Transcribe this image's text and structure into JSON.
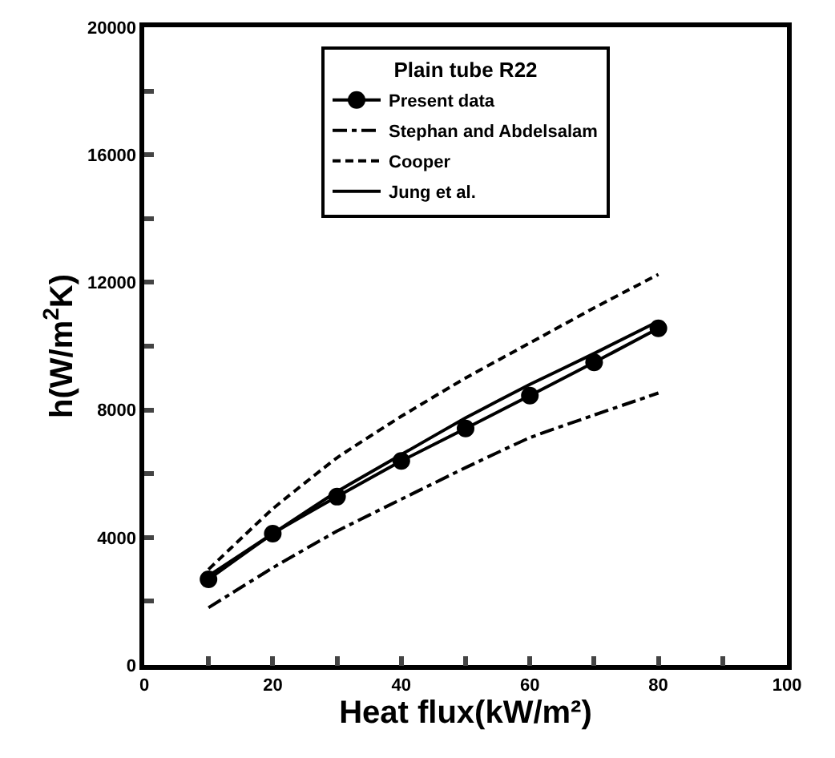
{
  "chart_data": {
    "type": "line",
    "xlabel": "Heat flux(kW/m²)",
    "ylabel": "h(W/m$^{2}$K)",
    "legend_title": "Plain tube R22",
    "x": [
      10,
      20,
      30,
      40,
      50,
      60,
      70,
      80
    ],
    "series": [
      {
        "name": "Present data",
        "color": "#000000",
        "marker": "circle",
        "line_style": "solid",
        "values": [
          2690,
          4120,
          5280,
          6400,
          7420,
          8450,
          9490,
          10560
        ]
      },
      {
        "name": "Stephan and Abdelsalam",
        "color": "#000000",
        "marker": "none",
        "line_style": "dashdot",
        "values": [
          1800,
          3050,
          4200,
          5200,
          6190,
          7130,
          7840,
          8530
        ]
      },
      {
        "name": "Cooper",
        "color": "#000000",
        "marker": "none",
        "line_style": "dashed",
        "values": [
          3000,
          4900,
          6500,
          7800,
          9000,
          10100,
          11200,
          12250
        ]
      },
      {
        "name": "Jung et al.",
        "color": "#000000",
        "marker": "none",
        "line_style": "solid",
        "values": [
          2800,
          4120,
          5440,
          6600,
          7750,
          8800,
          9770,
          10780
        ]
      }
    ],
    "xlim": [
      0,
      100
    ],
    "ylim": [
      0,
      20000
    ],
    "xticks": [
      0,
      {
        "value": 10,
        "label": null
      },
      20,
      {
        "value": 30,
        "label": null
      },
      40,
      {
        "value": 50,
        "label": null
      },
      60,
      {
        "value": 70,
        "label": null
      },
      80,
      {
        "value": 90,
        "label": null
      },
      100
    ],
    "yticks": [
      0,
      {
        "value": 2000,
        "label": null
      },
      4000,
      {
        "value": 6000,
        "label": null
      },
      8000,
      {
        "value": 10000,
        "label": null
      },
      12000,
      {
        "value": 14000,
        "label": null
      },
      16000,
      {
        "value": 18000,
        "label": null
      },
      20000
    ],
    "legend": "top"
  }
}
